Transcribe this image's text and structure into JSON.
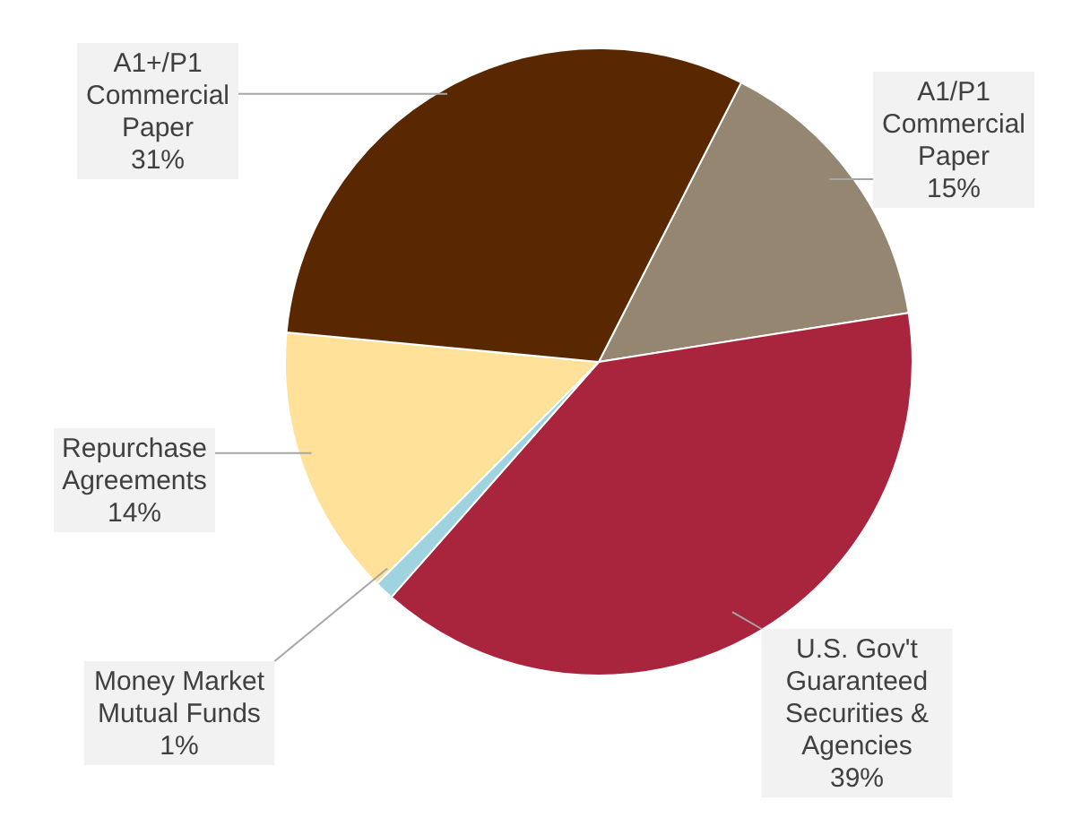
{
  "chart_data": {
    "type": "pie",
    "categories": [
      "A1/P1\nCommercial\nPaper",
      "U.S. Gov't\nGuaranteed\nSecurities &\nAgencies",
      "Money Market\nMutual Funds",
      "Repurchase\nAgreements",
      "A1+/P1\nCommercial\nPaper"
    ],
    "values": [
      15,
      39,
      1,
      14,
      31
    ],
    "colors": [
      "#948670",
      "#a8253d",
      "#9fd3e0",
      "#ffe199",
      "#5a2800"
    ],
    "value_labels": [
      "15%",
      "39%",
      "1%",
      "14%",
      "31%"
    ]
  }
}
